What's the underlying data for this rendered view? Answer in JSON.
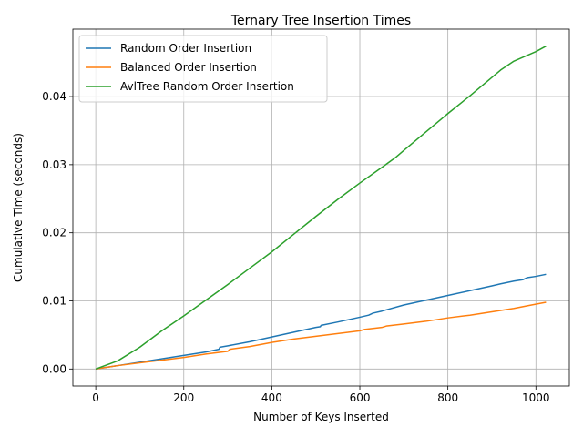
{
  "chart_data": {
    "type": "line",
    "title": "Ternary Tree Insertion Times",
    "xlabel": "Number of Keys Inserted",
    "ylabel": "Cumulative Time (seconds)",
    "xlim": [
      -52,
      1076
    ],
    "ylim": [
      -0.0025,
      0.0499
    ],
    "xticks": [
      0,
      200,
      400,
      600,
      800,
      1000
    ],
    "xtick_labels": [
      "0",
      "200",
      "400",
      "600",
      "800",
      "1000"
    ],
    "yticks": [
      0.0,
      0.01,
      0.02,
      0.03,
      0.04
    ],
    "ytick_labels": [
      "0.00",
      "0.01",
      "0.02",
      "0.03",
      "0.04"
    ],
    "grid": true,
    "legend_position": "top-left",
    "series": [
      {
        "name": "Random Order Insertion",
        "color": "#1f77b4",
        "x": [
          0,
          50,
          100,
          150,
          200,
          250,
          280,
          282,
          300,
          350,
          400,
          450,
          500,
          510,
          512,
          550,
          600,
          620,
          630,
          650,
          700,
          750,
          800,
          850,
          900,
          920,
          950,
          970,
          980,
          1000,
          1023
        ],
        "y": [
          0.0,
          0.0005,
          0.001,
          0.0015,
          0.002,
          0.0025,
          0.0029,
          0.0032,
          0.0034,
          0.004,
          0.0047,
          0.0054,
          0.0061,
          0.0062,
          0.0064,
          0.0069,
          0.0076,
          0.0079,
          0.0082,
          0.0085,
          0.0094,
          0.0101,
          0.0108,
          0.0115,
          0.0122,
          0.0125,
          0.0129,
          0.0131,
          0.0134,
          0.0136,
          0.0139
        ]
      },
      {
        "name": "Balanced Order Insertion",
        "color": "#ff7f0e",
        "x": [
          0,
          50,
          100,
          150,
          200,
          250,
          300,
          305,
          350,
          400,
          450,
          500,
          550,
          600,
          610,
          650,
          660,
          700,
          750,
          800,
          850,
          900,
          950,
          990,
          1023
        ],
        "y": [
          0.0,
          0.0005,
          0.0009,
          0.0013,
          0.0017,
          0.0022,
          0.0026,
          0.0029,
          0.0033,
          0.0039,
          0.0044,
          0.0048,
          0.0052,
          0.0056,
          0.0058,
          0.0061,
          0.0063,
          0.0066,
          0.007,
          0.0075,
          0.0079,
          0.0084,
          0.0089,
          0.0094,
          0.0098
        ]
      },
      {
        "name": "AvlTree Random Order Insertion",
        "color": "#2ca02c",
        "x": [
          0,
          50,
          100,
          150,
          200,
          250,
          300,
          350,
          400,
          450,
          500,
          550,
          600,
          650,
          680,
          700,
          750,
          800,
          850,
          900,
          920,
          950,
          1000,
          1023
        ],
        "y": [
          0.0,
          0.0012,
          0.0032,
          0.0056,
          0.0078,
          0.0101,
          0.0124,
          0.0148,
          0.0172,
          0.0198,
          0.0224,
          0.0249,
          0.0273,
          0.0296,
          0.031,
          0.0321,
          0.0348,
          0.0375,
          0.0401,
          0.0428,
          0.0439,
          0.0452,
          0.0466,
          0.0474
        ]
      }
    ]
  }
}
